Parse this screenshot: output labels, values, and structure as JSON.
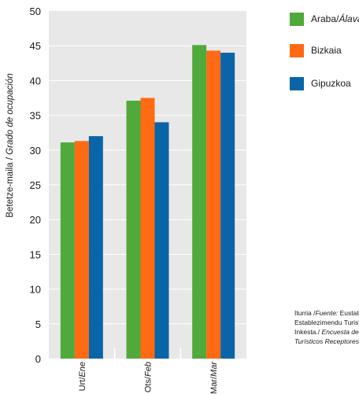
{
  "chart_data": {
    "type": "bar",
    "categories": [
      "Urt/Ene",
      "Ots/Feb",
      "Mar/Mar"
    ],
    "category_labels": [
      {
        "plain": "Urt/",
        "italic": "Ene"
      },
      {
        "plain": "Ots/",
        "italic": "Feb"
      },
      {
        "plain": "Mar/",
        "italic": "Mar"
      }
    ],
    "series": [
      {
        "name": "Araba/Álava",
        "name_plain": "Araba/",
        "name_italic": "Álava",
        "color": "#4faa3b",
        "values": [
          31.1,
          37.1,
          45.1
        ]
      },
      {
        "name": "Bizkaia",
        "color": "#ff6a12",
        "values": [
          31.3,
          37.5,
          44.3
        ]
      },
      {
        "name": "Gipuzkoa",
        "color": "#0a64a8",
        "values": [
          32.0,
          34.0,
          44.0
        ]
      }
    ],
    "ylabel": {
      "plain": "Betetze-maila / ",
      "italic": "Grado de ocupación"
    },
    "ylim": [
      0,
      50
    ],
    "yticks": [
      "0",
      "5",
      "10",
      "15",
      "20",
      "25",
      "30",
      "35",
      "40",
      "45",
      "50"
    ],
    "grid": true,
    "background_color": "#e8e8e8",
    "legend_position": "right"
  },
  "source_note": {
    "line1_plain": "Iturria /",
    "line1_italic": "Fuente:",
    "line1_rest": " Eustat. Establezimendu Turistiko Hartzaileen",
    "line2": "Establezimendu Turistiko",
    "line3_plain": "Inkesta./",
    "line3_italic": " Encuesta de Establecimientos",
    "line4_italic": "Turísticos Receptores"
  }
}
